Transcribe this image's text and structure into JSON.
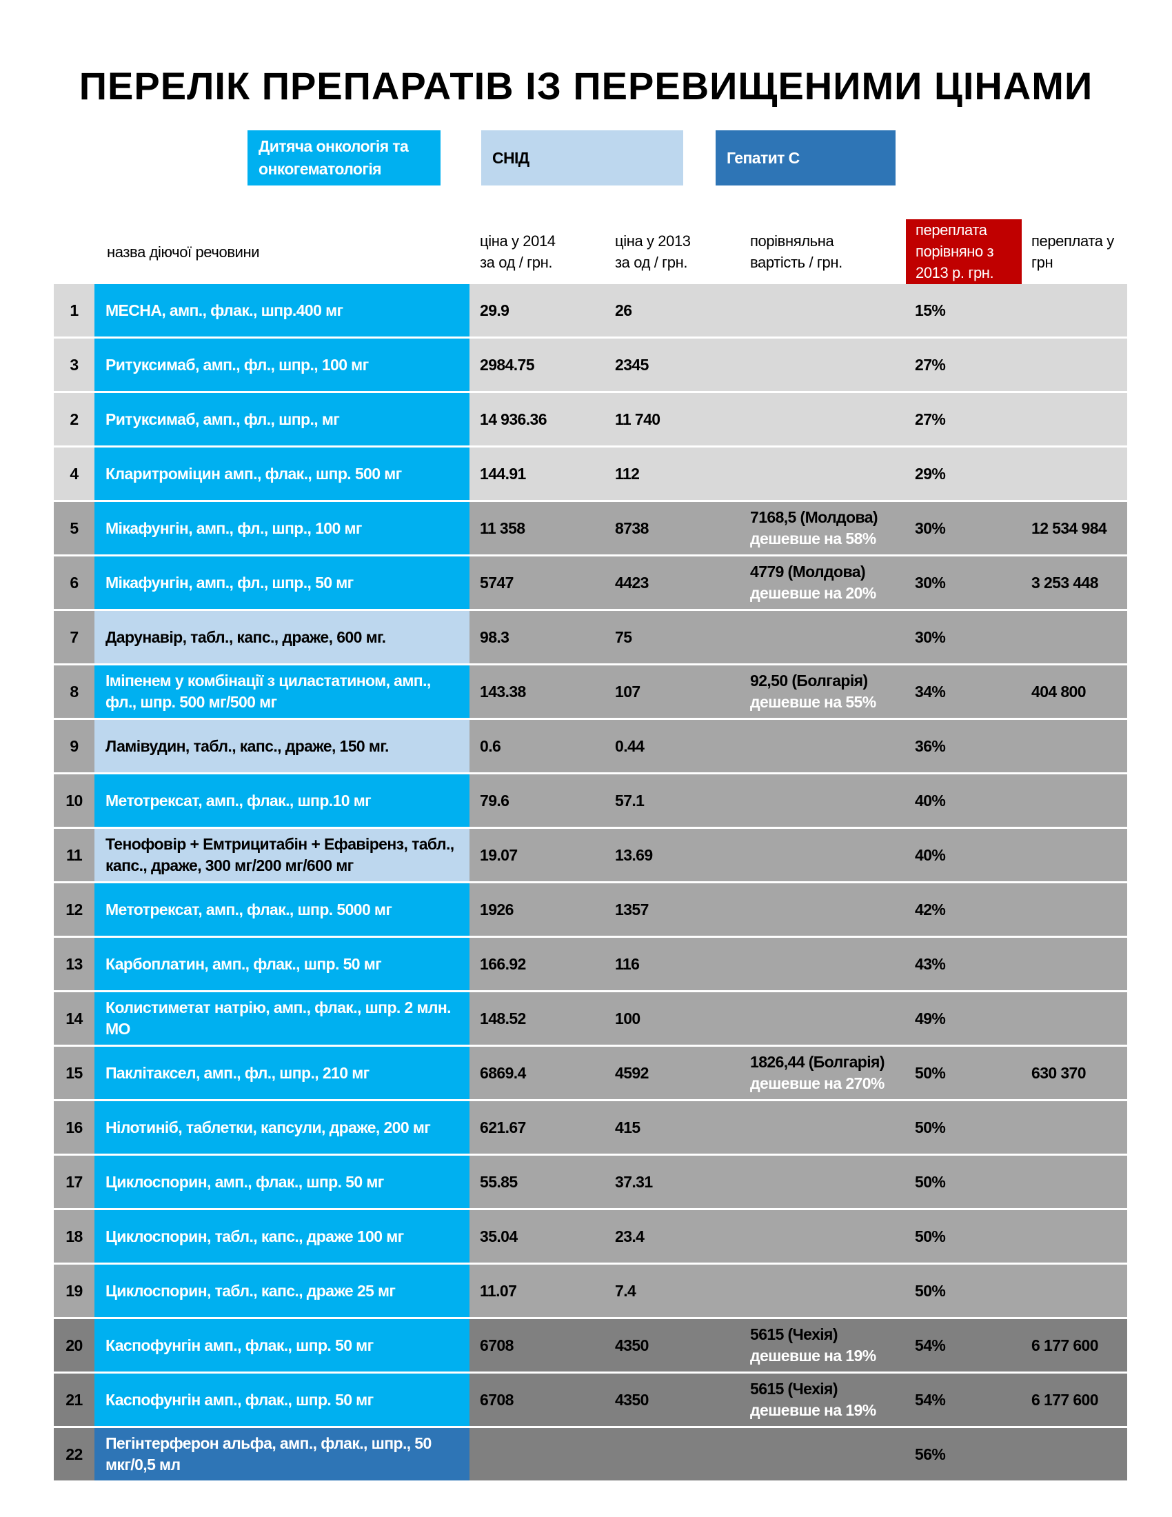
{
  "title": "ПЕРЕЛІК ПРЕПАРАТІВ ІЗ ПЕРЕВИЩЕНИМИ ЦІНАМИ",
  "legend": [
    {
      "label": "Дитяча онкологія та онкогематологія",
      "color": "#00b0f0",
      "text_color": "#ffffff"
    },
    {
      "label": "СНІД",
      "color": "#bdd7ee",
      "text_color": "#000000"
    },
    {
      "label": "Гепатит С",
      "color": "#2e75b6",
      "text_color": "#ffffff"
    }
  ],
  "headers": {
    "name": "назва діючої речовини",
    "price2014": "ціна у 2014 за од / грн.",
    "price2013": "ціна у 2013 за од / грн.",
    "compare": "порівняльна вартість / грн.",
    "overpay_pct": "переплата порівняно з 2013 р. грн.",
    "overpay_uah": "переплата у грн"
  },
  "colors": {
    "row_light": "#d9d9d9",
    "row_mid": "#a6a6a6",
    "row_dark": "#808080",
    "header_red": "#c00000"
  },
  "rows": [
    {
      "n": "1",
      "name": "МЕСНА, амп., флак., шпр.400 мг",
      "cat": 0,
      "p14": "29.9",
      "p13": "26",
      "cmp": "",
      "cmp2": "",
      "pct": "15%",
      "uah": "",
      "shade": "row_light"
    },
    {
      "n": "3",
      "name": "Ритуксимаб, амп., фл., шпр., 100 мг",
      "cat": 0,
      "p14": "2984.75",
      "p13": "2345",
      "cmp": "",
      "cmp2": "",
      "pct": "27%",
      "uah": "",
      "shade": "row_light"
    },
    {
      "n": "2",
      "name": "Ритуксимаб, амп., фл., шпр., мг",
      "cat": 0,
      "p14": "14 936.36",
      "p13": "11 740",
      "cmp": "",
      "cmp2": "",
      "pct": "27%",
      "uah": "",
      "shade": "row_light"
    },
    {
      "n": "4",
      "name": "Кларитроміцин амп., флак., шпр. 500 мг",
      "cat": 0,
      "p14": "144.91",
      "p13": "112",
      "cmp": "",
      "cmp2": "",
      "pct": "29%",
      "uah": "",
      "shade": "row_light"
    },
    {
      "n": "5",
      "name": "Мікафунгін, амп., фл., шпр., 100 мг",
      "cat": 0,
      "p14": "11 358",
      "p13": "8738",
      "cmp": "7168,5 (Молдова)",
      "cmp2": "дешевше на 58%",
      "pct": "30%",
      "uah": "12 534 984",
      "shade": "row_mid"
    },
    {
      "n": "6",
      "name": "Мікафунгін, амп., фл., шпр., 50 мг",
      "cat": 0,
      "p14": "5747",
      "p13": "4423",
      "cmp": "4779 (Молдова)",
      "cmp2": "дешевше на 20%",
      "pct": "30%",
      "uah": "3 253 448",
      "shade": "row_mid"
    },
    {
      "n": "7",
      "name": "Дарунавір, табл., капс., драже, 600 мг.",
      "cat": 1,
      "p14": "98.3",
      "p13": "75",
      "cmp": "",
      "cmp2": "",
      "pct": "30%",
      "uah": "",
      "shade": "row_mid"
    },
    {
      "n": "8",
      "name": "Іміпенем у комбінації з циластатином, амп., фл., шпр. 500 мг/500 мг",
      "cat": 0,
      "p14": "143.38",
      "p13": "107",
      "cmp": "92,50 (Болгарія)",
      "cmp2": "дешевше на 55%",
      "pct": "34%",
      "uah": "404 800",
      "shade": "row_mid"
    },
    {
      "n": "9",
      "name": "Ламівудин, табл., капс., драже, 150 мг.",
      "cat": 1,
      "p14": "0.6",
      "p13": "0.44",
      "cmp": "",
      "cmp2": "",
      "pct": "36%",
      "uah": "",
      "shade": "row_mid"
    },
    {
      "n": "10",
      "name": "Метотрексат, амп., флак., шпр.10 мг",
      "cat": 0,
      "p14": "79.6",
      "p13": "57.1",
      "cmp": "",
      "cmp2": "",
      "pct": "40%",
      "uah": "",
      "shade": "row_mid"
    },
    {
      "n": "11",
      "name": "Тенофовір + Емтрицитабін + Ефавіренз, табл., капс., драже, 300 мг/200 мг/600 мг",
      "cat": 1,
      "p14": "19.07",
      "p13": "13.69",
      "cmp": "",
      "cmp2": "",
      "pct": "40%",
      "uah": "",
      "shade": "row_mid"
    },
    {
      "n": "12",
      "name": "Метотрексат, амп., флак., шпр. 5000 мг",
      "cat": 0,
      "p14": "1926",
      "p13": "1357",
      "cmp": "",
      "cmp2": "",
      "pct": "42%",
      "uah": "",
      "shade": "row_mid"
    },
    {
      "n": "13",
      "name": "Карбоплатин, амп., флак., шпр. 50 мг",
      "cat": 0,
      "p14": "166.92",
      "p13": "116",
      "cmp": "",
      "cmp2": "",
      "pct": "43%",
      "uah": "",
      "shade": "row_mid"
    },
    {
      "n": "14",
      "name": "Колистиметат натрію, амп., флак., шпр. 2 млн. МО",
      "cat": 0,
      "p14": "148.52",
      "p13": "100",
      "cmp": "",
      "cmp2": "",
      "pct": "49%",
      "uah": "",
      "shade": "row_mid"
    },
    {
      "n": "15",
      "name": "Паклітаксел, амп., фл., шпр., 210 мг",
      "cat": 0,
      "p14": "6869.4",
      "p13": "4592",
      "cmp": "1826,44 (Болгарія)",
      "cmp2": "дешевше на 270%",
      "pct": "50%",
      "uah": "630 370",
      "shade": "row_mid"
    },
    {
      "n": "16",
      "name": "Нілотиніб, таблетки, капсули, драже, 200 мг",
      "cat": 0,
      "p14": "621.67",
      "p13": "415",
      "cmp": "",
      "cmp2": "",
      "pct": "50%",
      "uah": "",
      "shade": "row_mid"
    },
    {
      "n": "17",
      "name": "Циклоспорин, амп., флак., шпр. 50 мг",
      "cat": 0,
      "p14": "55.85",
      "p13": "37.31",
      "cmp": "",
      "cmp2": "",
      "pct": "50%",
      "uah": "",
      "shade": "row_mid"
    },
    {
      "n": "18",
      "name": "Циклоспорин, табл., капс., драже 100 мг",
      "cat": 0,
      "p14": "35.04",
      "p13": "23.4",
      "cmp": "",
      "cmp2": "",
      "pct": "50%",
      "uah": "",
      "shade": "row_mid"
    },
    {
      "n": "19",
      "name": "Циклоспорин, табл., капс., драже 25 мг",
      "cat": 0,
      "p14": "11.07",
      "p13": "7.4",
      "cmp": "",
      "cmp2": "",
      "pct": "50%",
      "uah": "",
      "shade": "row_mid"
    },
    {
      "n": "20",
      "name": "Каспофунгін амп., флак., шпр. 50 мг",
      "cat": 0,
      "p14": "6708",
      "p13": "4350",
      "cmp": "5615 (Чехія)",
      "cmp2": "дешевше на 19%",
      "pct": "54%",
      "uah": "6 177 600",
      "shade": "row_dark"
    },
    {
      "n": "21",
      "name": "Каспофунгін амп., флак., шпр. 50 мг",
      "cat": 0,
      "p14": "6708",
      "p13": "4350",
      "cmp": "5615 (Чехія)",
      "cmp2": "дешевше на 19%",
      "pct": "54%",
      "uah": "6 177 600",
      "shade": "row_dark"
    },
    {
      "n": "22",
      "name": "Пегінтерферон альфа, амп., флак., шпр., 50 мкг/0,5 мл",
      "cat": 2,
      "p14": "",
      "p13": "",
      "cmp": "",
      "cmp2": "",
      "pct": "56%",
      "uah": "",
      "shade": "row_dark"
    }
  ]
}
